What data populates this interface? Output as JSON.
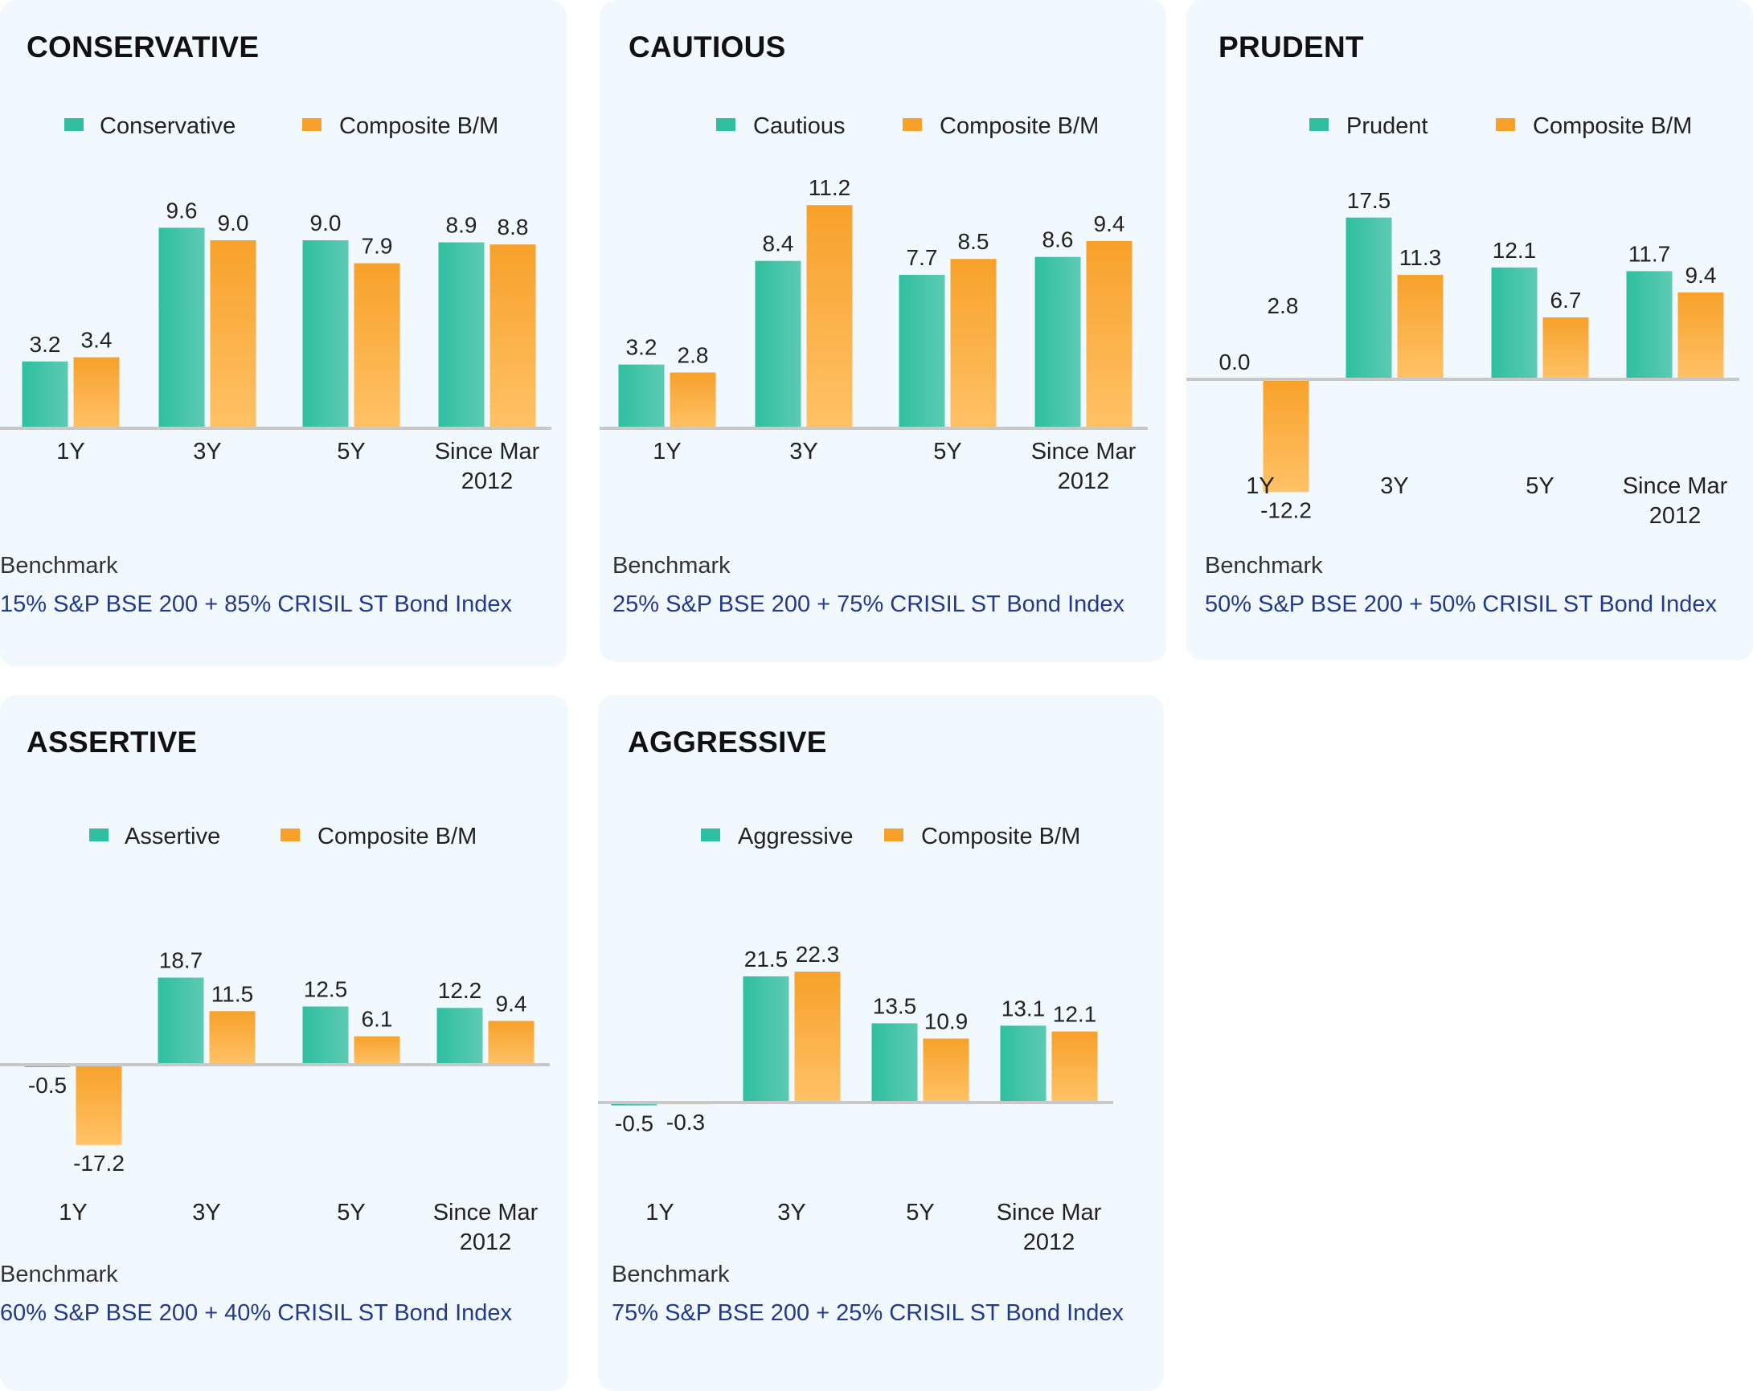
{
  "benchmark_label": "Benchmark",
  "colors": {
    "portfolio": "#2fbfa0",
    "benchmark": "#f7a12a",
    "card_bg": "#f1f8fe",
    "benchmark_text": "#233a8c"
  },
  "cards": [
    {
      "title": "CONSERVATIVE",
      "benchmark_text": "15% S&P BSE 200 + 85% CRISIL ST Bond Index"
    },
    {
      "title": "CAUTIOUS",
      "benchmark_text": "25% S&P BSE 200 + 75% CRISIL ST Bond Index"
    },
    {
      "title": "PRUDENT",
      "benchmark_text": "50% S&P BSE 200 + 50% CRISIL ST Bond Index"
    },
    {
      "title": "ASSERTIVE",
      "benchmark_text": "60% S&P BSE 200 + 40% CRISIL ST Bond Index"
    },
    {
      "title": "AGGRESSIVE",
      "benchmark_text": "75% S&P BSE 200 + 25% CRISIL ST Bond Index"
    }
  ],
  "chart_data": [
    {
      "type": "bar",
      "categories": [
        [
          "1Y"
        ],
        [
          "3Y"
        ],
        [
          "5Y"
        ],
        [
          "Since Mar",
          "2012"
        ]
      ],
      "series": [
        {
          "name": "Conservative",
          "values": [
            3.2,
            9.6,
            9.0,
            8.9
          ],
          "labels": [
            "3.2",
            "9.6",
            "9.0",
            "8.9"
          ]
        },
        {
          "name": "Composite B/M",
          "values": [
            3.4,
            9.0,
            7.9,
            8.8
          ],
          "labels": [
            "3.4",
            "9.0",
            "7.9",
            "8.8"
          ]
        }
      ]
    },
    {
      "type": "bar",
      "categories": [
        [
          "1Y"
        ],
        [
          "3Y"
        ],
        [
          "5Y"
        ],
        [
          "Since Mar",
          "2012"
        ]
      ],
      "series": [
        {
          "name": "Cautious",
          "values": [
            3.2,
            8.4,
            7.7,
            8.6
          ],
          "labels": [
            "3.2",
            "8.4",
            "7.7",
            "8.6"
          ]
        },
        {
          "name": "Composite B/M",
          "values": [
            2.8,
            11.2,
            8.5,
            9.4
          ],
          "labels": [
            "2.8",
            "11.2",
            "8.5",
            "9.4"
          ]
        }
      ]
    },
    {
      "type": "bar",
      "categories": [
        [
          "1Y"
        ],
        [
          "3Y"
        ],
        [
          "5Y"
        ],
        [
          "Since Mar",
          "2012"
        ]
      ],
      "series": [
        {
          "name": "Prudent",
          "values": [
            0.0,
            17.5,
            12.1,
            11.7
          ],
          "labels": [
            "0.0",
            "17.5",
            "12.1",
            "11.7"
          ]
        },
        {
          "name": "Composite B/M",
          "values": [
            -12.2,
            11.3,
            6.7,
            9.4
          ],
          "labels": [
            "-12.2",
            "11.3",
            "6.7",
            "9.4"
          ]
        }
      ],
      "annotations": [
        "2.8"
      ]
    },
    {
      "type": "bar",
      "categories": [
        [
          "1Y"
        ],
        [
          "3Y"
        ],
        [
          "5Y"
        ],
        [
          "Since Mar",
          "2012"
        ]
      ],
      "series": [
        {
          "name": "Assertive",
          "values": [
            -0.5,
            18.7,
            12.5,
            12.2
          ],
          "labels": [
            "-0.5",
            "18.7",
            "12.5",
            "12.2"
          ]
        },
        {
          "name": "Composite B/M",
          "values": [
            -17.2,
            11.5,
            6.1,
            9.4
          ],
          "labels": [
            "-17.2",
            "11.5",
            "6.1",
            "9.4"
          ]
        }
      ]
    },
    {
      "type": "bar",
      "categories": [
        [
          "1Y"
        ],
        [
          "3Y"
        ],
        [
          "5Y"
        ],
        [
          "Since Mar",
          "2012"
        ]
      ],
      "series": [
        {
          "name": "Aggressive",
          "values": [
            -0.5,
            21.5,
            13.5,
            13.1
          ],
          "labels": [
            "-0.5",
            "21.5",
            "13.5",
            "13.1"
          ]
        },
        {
          "name": "Composite B/M",
          "values": [
            -0.3,
            22.3,
            10.9,
            12.1
          ],
          "labels": [
            "-0.3",
            "22.3",
            "10.9",
            "12.1"
          ]
        }
      ]
    }
  ]
}
